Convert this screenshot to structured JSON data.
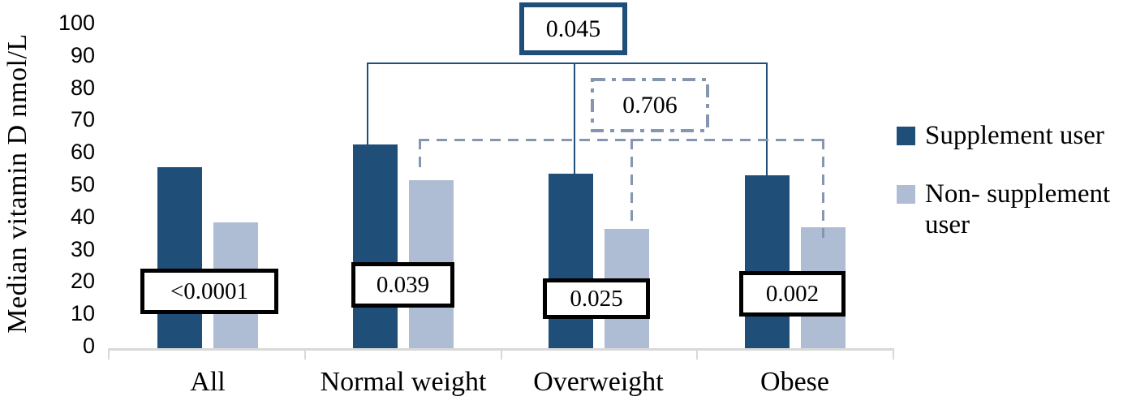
{
  "figure": {
    "y_axis": {
      "title": "Median vitamin D nmol/L",
      "tick_labels": [
        "100",
        "90",
        "80",
        "70",
        "60",
        "50",
        "40",
        "30",
        "20",
        "10",
        "0"
      ]
    },
    "x_axis": {
      "categories": [
        "All",
        "Normal weight",
        "Overweight",
        "Obese"
      ]
    },
    "legend": {
      "items": [
        {
          "label": "Supplement user",
          "color": "#1f4e79"
        },
        {
          "label": "Non- supplement user",
          "color": "#afbdd4"
        }
      ]
    },
    "colors": {
      "supplement_bar": "#1f4e79",
      "non_supplement_bar": "#afbdd4",
      "solid_bracket": "#1f4e79",
      "dashed_bracket": "#8496b0",
      "axis_line": "#d9d9d9",
      "p_box_border": "#000000"
    }
  },
  "chart_data": {
    "type": "bar",
    "categories": [
      "All",
      "Normal weight",
      "Overweight",
      "Obese"
    ],
    "series": [
      {
        "name": "Supplement user",
        "color": "#1f4e79",
        "values": [
          56,
          63,
          54,
          53.5
        ]
      },
      {
        "name": "Non- supplement user",
        "color": "#afbdd4",
        "values": [
          39,
          52,
          37,
          37.5
        ]
      }
    ],
    "title": "",
    "xlabel": "",
    "ylabel": "Median vitamin D nmol/L",
    "ylim": [
      0,
      100
    ],
    "ytick_step": 10,
    "grid": false,
    "legend_position": "right",
    "p_values": {
      "within_group": [
        {
          "category": "All",
          "p": "<0.0001"
        },
        {
          "category": "Normal weight",
          "p": "0.039"
        },
        {
          "category": "Overweight",
          "p": "0.025"
        },
        {
          "category": "Obese",
          "p": "0.002"
        }
      ],
      "across_groups": [
        {
          "series": "Supplement user",
          "p": "0.045",
          "box_style": "solid-navy"
        },
        {
          "series": "Non- supplement user",
          "p": "0.706",
          "box_style": "dash-dot-gray"
        }
      ]
    }
  }
}
